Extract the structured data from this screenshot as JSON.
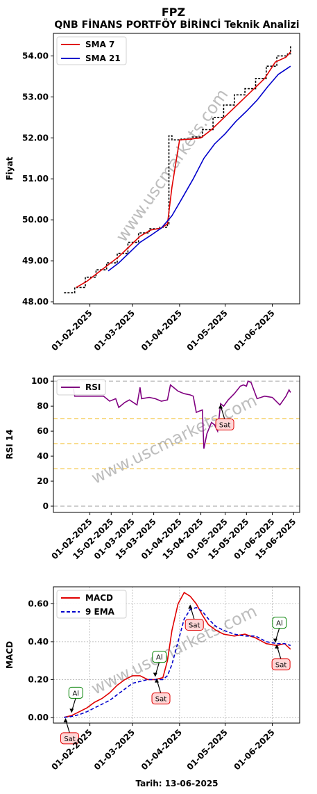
{
  "header": {
    "title": "FPZ",
    "subtitle": "QNB FİNANS PORTFÖY BİRİNCİ Teknik Analizi"
  },
  "watermark": "www.uscmarkets.com",
  "footer": {
    "date_label": "Tarih: 13-06-2025"
  },
  "colors": {
    "price": "#000000",
    "sma7": "#e00000",
    "sma21": "#0000cc",
    "rsi": "#800080",
    "macd": "#e00000",
    "ema9": "#0000cc",
    "buy_border": "#008000",
    "sell_border": "#e00000",
    "sell_fill": "#ffd6d6",
    "buy_fill": "#ffffff"
  },
  "chart_data": [
    {
      "type": "line",
      "ylabel": "Fiyat",
      "ylim": [
        47.95,
        54.55
      ],
      "yticks": [
        "48.00",
        "49.00",
        "50.00",
        "51.00",
        "52.00",
        "53.00",
        "54.00"
      ],
      "xticks": [
        "01-02-2025",
        "01-03-2025",
        "01-04-2025",
        "01-05-2025",
        "01-06-2025"
      ],
      "legend": "top-left",
      "grid": false,
      "series": [
        {
          "name": "Price",
          "label_shown": false,
          "x": [
            "2025-01-15",
            "2025-01-22",
            "2025-01-29",
            "2025-02-05",
            "2025-02-12",
            "2025-02-19",
            "2025-02-26",
            "2025-03-05",
            "2025-03-12",
            "2025-03-19",
            "2025-03-24",
            "2025-03-25",
            "2025-03-27",
            "2025-04-02",
            "2025-04-09",
            "2025-04-16",
            "2025-04-23",
            "2025-04-30",
            "2025-05-07",
            "2025-05-14",
            "2025-05-21",
            "2025-05-28",
            "2025-06-04",
            "2025-06-11",
            "2025-06-13"
          ],
          "values": [
            48.22,
            48.35,
            48.6,
            48.78,
            48.95,
            49.18,
            49.45,
            49.68,
            49.78,
            49.82,
            49.9,
            52.05,
            51.95,
            51.97,
            52.02,
            52.2,
            52.5,
            52.8,
            53.05,
            53.2,
            53.45,
            53.75,
            54.0,
            54.05,
            54.25
          ]
        },
        {
          "name": "SMA 7",
          "x": [
            "2025-01-23",
            "2025-01-30",
            "2025-02-06",
            "2025-02-13",
            "2025-02-20",
            "2025-02-27",
            "2025-03-06",
            "2025-03-13",
            "2025-03-20",
            "2025-03-24",
            "2025-03-27",
            "2025-04-01",
            "2025-04-08",
            "2025-04-15",
            "2025-04-22",
            "2025-04-29",
            "2025-05-06",
            "2025-05-13",
            "2025-05-20",
            "2025-05-27",
            "2025-06-03",
            "2025-06-10",
            "2025-06-13"
          ],
          "values": [
            48.35,
            48.5,
            48.7,
            48.9,
            49.1,
            49.35,
            49.6,
            49.75,
            49.8,
            49.9,
            50.8,
            51.95,
            51.97,
            52.0,
            52.2,
            52.45,
            52.7,
            52.95,
            53.2,
            53.45,
            53.85,
            53.97,
            54.1
          ]
        },
        {
          "name": "SMA 21",
          "x": [
            "2025-02-13",
            "2025-02-20",
            "2025-02-27",
            "2025-03-06",
            "2025-03-13",
            "2025-03-20",
            "2025-03-27",
            "2025-04-03",
            "2025-04-10",
            "2025-04-17",
            "2025-04-24",
            "2025-05-01",
            "2025-05-08",
            "2025-05-15",
            "2025-05-22",
            "2025-05-29",
            "2025-06-05",
            "2025-06-13"
          ],
          "values": [
            48.75,
            48.95,
            49.2,
            49.45,
            49.62,
            49.8,
            50.1,
            50.55,
            51.0,
            51.5,
            51.85,
            52.1,
            52.4,
            52.65,
            52.92,
            53.25,
            53.55,
            53.75
          ]
        }
      ]
    },
    {
      "type": "line",
      "ylabel": "RSI 14",
      "ylim": [
        -5,
        104
      ],
      "yticks": [
        "0",
        "20",
        "40",
        "60",
        "80",
        "100"
      ],
      "xticks": [
        "01-02-2025",
        "15-02-2025",
        "01-03-2025",
        "15-03-2025",
        "01-04-2025",
        "15-04-2025",
        "01-05-2025",
        "15-05-2025",
        "01-06-2025",
        "15-06-2025"
      ],
      "hlines": [
        0,
        30,
        50,
        70,
        100
      ],
      "legend": "top-left",
      "series": [
        {
          "name": "RSI",
          "x": [
            "2025-01-15",
            "2025-01-21",
            "2025-01-22",
            "2025-02-10",
            "2025-02-14",
            "2025-02-18",
            "2025-02-20",
            "2025-02-24",
            "2025-02-27",
            "2025-03-04",
            "2025-03-06",
            "2025-03-07",
            "2025-03-12",
            "2025-03-16",
            "2025-03-20",
            "2025-03-24",
            "2025-03-26",
            "2025-03-31",
            "2025-04-04",
            "2025-04-08",
            "2025-04-10",
            "2025-04-12",
            "2025-04-14",
            "2025-04-16",
            "2025-04-17",
            "2025-04-19",
            "2025-04-22",
            "2025-04-24",
            "2025-04-26",
            "2025-04-28",
            "2025-04-30",
            "2025-05-03",
            "2025-05-07",
            "2025-05-11",
            "2025-05-13",
            "2025-05-15",
            "2025-05-16",
            "2025-05-18",
            "2025-05-22",
            "2025-05-27",
            "2025-06-01",
            "2025-06-06",
            "2025-06-10",
            "2025-06-12",
            "2025-06-13"
          ],
          "values": [
            95,
            95,
            88,
            88,
            84,
            86,
            79,
            83,
            85,
            81,
            95,
            86,
            87,
            86,
            84,
            85,
            97,
            92,
            90,
            89,
            88,
            75,
            76,
            77,
            46,
            58,
            67,
            65,
            60,
            82,
            80,
            85,
            90,
            96,
            97,
            96,
            100,
            99,
            86,
            88,
            87,
            81,
            88,
            93,
            91
          ]
        }
      ],
      "annotations": [
        {
          "label": "Sat",
          "x": "2025-04-28",
          "y": 82,
          "type": "sell"
        }
      ]
    },
    {
      "type": "line",
      "ylabel": "MACD",
      "ylim": [
        -0.03,
        0.69
      ],
      "yticks": [
        "0.00",
        "0.20",
        "0.40",
        "0.60"
      ],
      "xticks": [
        "01-02-2025",
        "01-03-2025",
        "01-04-2025",
        "01-05-2025",
        "01-06-2025"
      ],
      "legend": "top-left",
      "grid": true,
      "series": [
        {
          "name": "MACD",
          "x": [
            "2025-01-15",
            "2025-01-20",
            "2025-01-25",
            "2025-01-30",
            "2025-02-04",
            "2025-02-09",
            "2025-02-14",
            "2025-02-19",
            "2025-02-24",
            "2025-03-01",
            "2025-03-06",
            "2025-03-11",
            "2025-03-16",
            "2025-03-21",
            "2025-03-24",
            "2025-03-27",
            "2025-03-31",
            "2025-04-04",
            "2025-04-08",
            "2025-04-12",
            "2025-04-16",
            "2025-04-20",
            "2025-04-25",
            "2025-04-30",
            "2025-05-07",
            "2025-05-14",
            "2025-05-21",
            "2025-05-28",
            "2025-06-04",
            "2025-06-09",
            "2025-06-13"
          ],
          "values": [
            0.0,
            0.01,
            0.03,
            0.05,
            0.08,
            0.1,
            0.13,
            0.17,
            0.2,
            0.22,
            0.22,
            0.2,
            0.2,
            0.21,
            0.3,
            0.46,
            0.6,
            0.66,
            0.64,
            0.6,
            0.54,
            0.49,
            0.46,
            0.44,
            0.43,
            0.44,
            0.42,
            0.39,
            0.38,
            0.39,
            0.36
          ]
        },
        {
          "name": "9 EMA",
          "x": [
            "2025-01-15",
            "2025-01-20",
            "2025-01-25",
            "2025-01-30",
            "2025-02-04",
            "2025-02-09",
            "2025-02-14",
            "2025-02-19",
            "2025-02-24",
            "2025-03-01",
            "2025-03-06",
            "2025-03-11",
            "2025-03-16",
            "2025-03-21",
            "2025-03-24",
            "2025-03-27",
            "2025-03-31",
            "2025-04-04",
            "2025-04-08",
            "2025-04-12",
            "2025-04-16",
            "2025-04-20",
            "2025-04-25",
            "2025-04-30",
            "2025-05-07",
            "2025-05-14",
            "2025-05-21",
            "2025-05-28",
            "2025-06-04",
            "2025-06-09",
            "2025-06-13"
          ],
          "values": [
            0.0,
            0.005,
            0.015,
            0.03,
            0.05,
            0.07,
            0.09,
            0.12,
            0.15,
            0.18,
            0.19,
            0.2,
            0.2,
            0.2,
            0.22,
            0.28,
            0.4,
            0.52,
            0.57,
            0.58,
            0.56,
            0.52,
            0.48,
            0.46,
            0.44,
            0.43,
            0.43,
            0.4,
            0.39,
            0.39,
            0.38
          ]
        }
      ],
      "annotations": [
        {
          "label": "Sat",
          "x": "2025-01-16",
          "y": 0.0,
          "type": "sell"
        },
        {
          "label": "Al",
          "x": "2025-01-20",
          "y": 0.02,
          "type": "buy"
        },
        {
          "label": "Al",
          "x": "2025-03-16",
          "y": 0.21,
          "type": "buy"
        },
        {
          "label": "Sat",
          "x": "2025-03-17",
          "y": 0.21,
          "type": "sell"
        },
        {
          "label": "Sat",
          "x": "2025-04-08",
          "y": 0.6,
          "type": "sell"
        },
        {
          "label": "Al",
          "x": "2025-06-03",
          "y": 0.39,
          "type": "buy"
        },
        {
          "label": "Sat",
          "x": "2025-06-04",
          "y": 0.39,
          "type": "sell"
        }
      ]
    }
  ]
}
